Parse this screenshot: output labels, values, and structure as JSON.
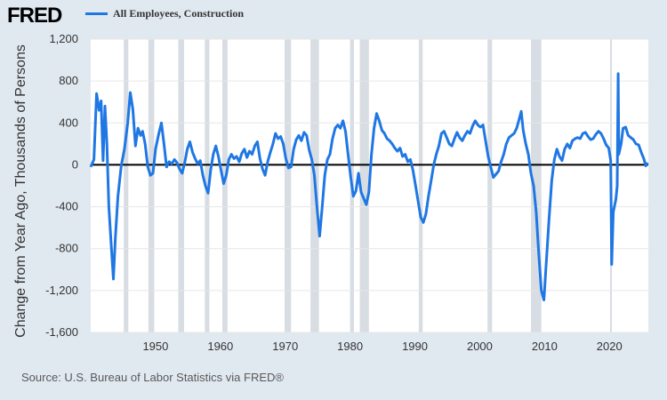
{
  "brand": "FRED",
  "colors": {
    "series": "#1f77e4",
    "recession": "#d7dde3",
    "background": "#e1e9f0",
    "plot": "#ffffff",
    "zero_line": "#000000"
  },
  "source_text": "Source: U.S. Bureau of Labor Statistics via FRED®",
  "chart_data": {
    "type": "line",
    "title": "",
    "xlabel": "",
    "ylabel": "Change from Year Ago, Thousands of Persons",
    "xlim": [
      1940,
      2026
    ],
    "ylim": [
      -1600,
      1200
    ],
    "y_ticks": [
      1200,
      800,
      400,
      0,
      -400,
      -800,
      -1200,
      -1600
    ],
    "y_tick_labels": [
      "1,200",
      "800",
      "400",
      "0",
      "-400",
      "-800",
      "-1,200",
      "-1,600"
    ],
    "x_ticks": [
      1950,
      1960,
      1970,
      1980,
      1990,
      2000,
      2010,
      2020
    ],
    "x_tick_labels": [
      "1950",
      "1960",
      "1970",
      "1980",
      "1990",
      "2000",
      "2010",
      "2020"
    ],
    "grid": "horizontal",
    "legend_position": "top-left",
    "recessions": [
      [
        1945.1,
        1945.8
      ],
      [
        1948.9,
        1949.8
      ],
      [
        1953.5,
        1954.4
      ],
      [
        1957.6,
        1958.3
      ],
      [
        1960.3,
        1961.1
      ],
      [
        1969.9,
        1970.9
      ],
      [
        1973.9,
        1975.2
      ],
      [
        1980.0,
        1980.6
      ],
      [
        1981.5,
        1982.9
      ],
      [
        1990.6,
        1991.2
      ],
      [
        2001.2,
        2001.9
      ],
      [
        2007.9,
        2009.5
      ],
      [
        2020.1,
        2020.3
      ]
    ],
    "series": [
      {
        "name": "All Employees, Construction",
        "points": [
          [
            1940.0,
            -20
          ],
          [
            1940.5,
            50
          ],
          [
            1940.9,
            680
          ],
          [
            1941.3,
            520
          ],
          [
            1941.6,
            610
          ],
          [
            1941.9,
            40
          ],
          [
            1942.2,
            560
          ],
          [
            1942.5,
            200
          ],
          [
            1942.8,
            -400
          ],
          [
            1943.2,
            -800
          ],
          [
            1943.5,
            -1090
          ],
          [
            1943.8,
            -700
          ],
          [
            1944.2,
            -300
          ],
          [
            1944.7,
            -10
          ],
          [
            1945.2,
            150
          ],
          [
            1945.7,
            400
          ],
          [
            1946.1,
            690
          ],
          [
            1946.5,
            530
          ],
          [
            1946.9,
            180
          ],
          [
            1947.3,
            350
          ],
          [
            1947.7,
            280
          ],
          [
            1948.0,
            320
          ],
          [
            1948.4,
            200
          ],
          [
            1948.8,
            -20
          ],
          [
            1949.2,
            -100
          ],
          [
            1949.6,
            -80
          ],
          [
            1950.0,
            150
          ],
          [
            1950.5,
            300
          ],
          [
            1950.9,
            400
          ],
          [
            1951.3,
            200
          ],
          [
            1951.7,
            -20
          ],
          [
            1952.1,
            30
          ],
          [
            1952.5,
            10
          ],
          [
            1952.9,
            50
          ],
          [
            1953.3,
            20
          ],
          [
            1953.7,
            -40
          ],
          [
            1954.1,
            -80
          ],
          [
            1954.5,
            20
          ],
          [
            1954.9,
            150
          ],
          [
            1955.3,
            220
          ],
          [
            1955.7,
            120
          ],
          [
            1956.1,
            60
          ],
          [
            1956.5,
            10
          ],
          [
            1956.9,
            40
          ],
          [
            1957.3,
            -100
          ],
          [
            1957.7,
            -200
          ],
          [
            1958.1,
            -270
          ],
          [
            1958.5,
            -50
          ],
          [
            1958.9,
            100
          ],
          [
            1959.3,
            180
          ],
          [
            1959.7,
            80
          ],
          [
            1960.1,
            -50
          ],
          [
            1960.5,
            -180
          ],
          [
            1960.9,
            -100
          ],
          [
            1961.3,
            50
          ],
          [
            1961.7,
            100
          ],
          [
            1962.1,
            60
          ],
          [
            1962.5,
            80
          ],
          [
            1962.9,
            30
          ],
          [
            1963.3,
            110
          ],
          [
            1963.7,
            150
          ],
          [
            1964.1,
            70
          ],
          [
            1964.5,
            130
          ],
          [
            1964.9,
            100
          ],
          [
            1965.3,
            180
          ],
          [
            1965.7,
            220
          ],
          [
            1966.1,
            60
          ],
          [
            1966.5,
            -40
          ],
          [
            1966.9,
            -100
          ],
          [
            1967.3,
            30
          ],
          [
            1967.7,
            120
          ],
          [
            1968.1,
            200
          ],
          [
            1968.5,
            300
          ],
          [
            1968.9,
            250
          ],
          [
            1969.3,
            270
          ],
          [
            1969.7,
            200
          ],
          [
            1970.1,
            60
          ],
          [
            1970.5,
            -30
          ],
          [
            1970.9,
            -20
          ],
          [
            1971.3,
            150
          ],
          [
            1971.7,
            240
          ],
          [
            1972.1,
            280
          ],
          [
            1972.5,
            230
          ],
          [
            1972.9,
            310
          ],
          [
            1973.3,
            280
          ],
          [
            1973.7,
            140
          ],
          [
            1974.1,
            50
          ],
          [
            1974.5,
            -100
          ],
          [
            1974.9,
            -400
          ],
          [
            1975.3,
            -680
          ],
          [
            1975.7,
            -400
          ],
          [
            1976.1,
            -100
          ],
          [
            1976.5,
            50
          ],
          [
            1976.9,
            100
          ],
          [
            1977.3,
            250
          ],
          [
            1977.7,
            350
          ],
          [
            1978.1,
            380
          ],
          [
            1978.5,
            350
          ],
          [
            1978.9,
            420
          ],
          [
            1979.3,
            320
          ],
          [
            1979.7,
            100
          ],
          [
            1980.1,
            -120
          ],
          [
            1980.5,
            -300
          ],
          [
            1980.9,
            -250
          ],
          [
            1981.3,
            -80
          ],
          [
            1981.7,
            -260
          ],
          [
            1982.1,
            -320
          ],
          [
            1982.5,
            -380
          ],
          [
            1982.9,
            -260
          ],
          [
            1983.3,
            100
          ],
          [
            1983.7,
            350
          ],
          [
            1984.1,
            490
          ],
          [
            1984.5,
            420
          ],
          [
            1984.9,
            330
          ],
          [
            1985.3,
            300
          ],
          [
            1985.7,
            250
          ],
          [
            1986.1,
            230
          ],
          [
            1986.5,
            200
          ],
          [
            1986.9,
            160
          ],
          [
            1987.3,
            130
          ],
          [
            1987.7,
            160
          ],
          [
            1988.1,
            80
          ],
          [
            1988.5,
            100
          ],
          [
            1988.9,
            30
          ],
          [
            1989.3,
            50
          ],
          [
            1989.7,
            -50
          ],
          [
            1990.1,
            -200
          ],
          [
            1990.5,
            -350
          ],
          [
            1990.9,
            -500
          ],
          [
            1991.3,
            -550
          ],
          [
            1991.7,
            -470
          ],
          [
            1992.1,
            -300
          ],
          [
            1992.5,
            -150
          ],
          [
            1992.9,
            0
          ],
          [
            1993.3,
            100
          ],
          [
            1993.7,
            180
          ],
          [
            1994.1,
            300
          ],
          [
            1994.5,
            320
          ],
          [
            1994.9,
            260
          ],
          [
            1995.3,
            200
          ],
          [
            1995.7,
            180
          ],
          [
            1996.1,
            250
          ],
          [
            1996.5,
            310
          ],
          [
            1996.9,
            260
          ],
          [
            1997.3,
            230
          ],
          [
            1997.7,
            280
          ],
          [
            1998.1,
            320
          ],
          [
            1998.5,
            300
          ],
          [
            1998.9,
            370
          ],
          [
            1999.3,
            420
          ],
          [
            1999.7,
            380
          ],
          [
            2000.1,
            360
          ],
          [
            2000.5,
            380
          ],
          [
            2000.9,
            230
          ],
          [
            2001.3,
            80
          ],
          [
            2001.7,
            -20
          ],
          [
            2002.1,
            -120
          ],
          [
            2002.5,
            -90
          ],
          [
            2002.9,
            -60
          ],
          [
            2003.3,
            30
          ],
          [
            2003.7,
            100
          ],
          [
            2004.1,
            200
          ],
          [
            2004.5,
            260
          ],
          [
            2004.9,
            280
          ],
          [
            2005.3,
            300
          ],
          [
            2005.7,
            350
          ],
          [
            2006.1,
            440
          ],
          [
            2006.4,
            510
          ],
          [
            2006.7,
            330
          ],
          [
            2007.1,
            200
          ],
          [
            2007.5,
            100
          ],
          [
            2007.9,
            -80
          ],
          [
            2008.3,
            -200
          ],
          [
            2008.7,
            -450
          ],
          [
            2009.1,
            -850
          ],
          [
            2009.5,
            -1200
          ],
          [
            2009.9,
            -1290
          ],
          [
            2010.3,
            -900
          ],
          [
            2010.7,
            -500
          ],
          [
            2011.1,
            -150
          ],
          [
            2011.5,
            50
          ],
          [
            2011.9,
            150
          ],
          [
            2012.3,
            80
          ],
          [
            2012.7,
            40
          ],
          [
            2013.1,
            150
          ],
          [
            2013.5,
            200
          ],
          [
            2013.9,
            160
          ],
          [
            2014.3,
            230
          ],
          [
            2014.7,
            250
          ],
          [
            2015.1,
            260
          ],
          [
            2015.5,
            250
          ],
          [
            2015.9,
            300
          ],
          [
            2016.3,
            310
          ],
          [
            2016.7,
            270
          ],
          [
            2017.1,
            240
          ],
          [
            2017.5,
            250
          ],
          [
            2017.9,
            290
          ],
          [
            2018.3,
            320
          ],
          [
            2018.7,
            300
          ],
          [
            2019.1,
            250
          ],
          [
            2019.5,
            190
          ],
          [
            2019.9,
            160
          ],
          [
            2020.2,
            40
          ],
          [
            2020.35,
            -950
          ],
          [
            2020.6,
            -450
          ],
          [
            2021.0,
            -330
          ],
          [
            2021.2,
            -200
          ],
          [
            2021.35,
            870
          ],
          [
            2021.45,
            100
          ],
          [
            2021.8,
            200
          ],
          [
            2022.1,
            350
          ],
          [
            2022.5,
            360
          ],
          [
            2022.9,
            280
          ],
          [
            2023.3,
            260
          ],
          [
            2023.7,
            240
          ],
          [
            2024.1,
            200
          ],
          [
            2024.5,
            190
          ],
          [
            2024.9,
            120
          ],
          [
            2025.3,
            60
          ],
          [
            2025.6,
            -10
          ],
          [
            2025.9,
            20
          ]
        ]
      }
    ]
  }
}
